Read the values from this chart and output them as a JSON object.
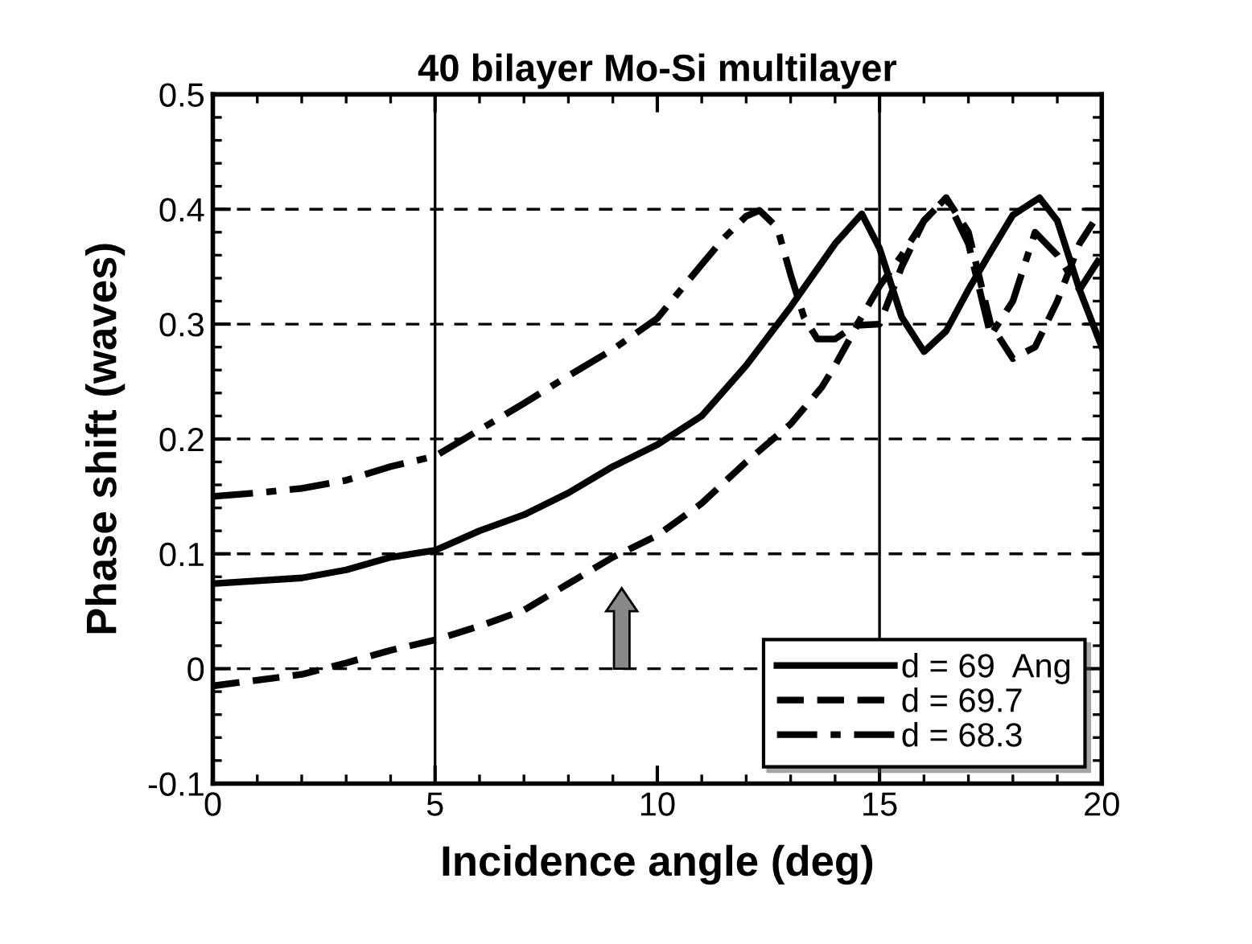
{
  "chart_data": {
    "type": "line",
    "title": "40 bilayer Mo-Si multilayer",
    "xlabel": "Incidence angle (deg)",
    "ylabel": "Phase shift (waves)",
    "xlim": [
      0,
      20
    ],
    "xticks": [
      0,
      5,
      10,
      15,
      20
    ],
    "ylim": [
      -0.1,
      0.5
    ],
    "yticks": [
      -0.1,
      0,
      0.1,
      0.2,
      0.3,
      0.4,
      0.5
    ],
    "grid": "y",
    "legend": "bottom right",
    "ref_lines": [
      {
        "axis": "x",
        "value": 5
      },
      {
        "axis": "x",
        "value": 15
      }
    ],
    "series": [
      {
        "name": "d = 69  Ang",
        "color": "#000000",
        "line_style": "solid",
        "x": [
          0,
          2,
          3,
          4,
          5,
          6,
          7,
          8,
          9,
          10,
          11,
          12,
          13,
          14,
          14.6,
          15,
          15.5,
          16,
          16.5,
          17,
          17.5,
          18,
          18.6,
          19,
          19.5,
          20
        ],
        "values": [
          0.074,
          0.079,
          0.086,
          0.097,
          0.103,
          0.12,
          0.134,
          0.153,
          0.176,
          0.195,
          0.22,
          0.264,
          0.315,
          0.37,
          0.396,
          0.366,
          0.306,
          0.276,
          0.294,
          0.33,
          0.363,
          0.395,
          0.41,
          0.39,
          0.33,
          0.28
        ]
      },
      {
        "name": "d = 69.7",
        "color": "#000000",
        "line_style": "dashed",
        "x": [
          0,
          2,
          3,
          4,
          5,
          6,
          7,
          8,
          9,
          10,
          11,
          12,
          13,
          13.7,
          14,
          14.5,
          15,
          15.5,
          16,
          16.5,
          17,
          17.5,
          18,
          18.5,
          19,
          19.5,
          20
        ],
        "values": [
          -0.015,
          -0.005,
          0.005,
          0.016,
          0.025,
          0.037,
          0.051,
          0.074,
          0.097,
          0.116,
          0.144,
          0.18,
          0.213,
          0.245,
          0.264,
          0.299,
          0.3,
          0.35,
          0.39,
          0.41,
          0.38,
          0.3,
          0.27,
          0.28,
          0.32,
          0.37,
          0.4
        ]
      },
      {
        "name": "d = 68.3",
        "color": "#000000",
        "line_style": "dashdot",
        "x": [
          0,
          1,
          2,
          3,
          4,
          5,
          6,
          7,
          8,
          9,
          10,
          11,
          11.5,
          12,
          12.3,
          12.7,
          13,
          13.3,
          13.6,
          14,
          14.5,
          15,
          15.5,
          16,
          16.5,
          17,
          17.5,
          18,
          18.5,
          19,
          19.5,
          20
        ],
        "values": [
          0.15,
          0.153,
          0.157,
          0.164,
          0.176,
          0.185,
          0.208,
          0.231,
          0.255,
          0.278,
          0.305,
          0.352,
          0.375,
          0.394,
          0.399,
          0.384,
          0.343,
          0.306,
          0.287,
          0.287,
          0.3,
          0.333,
          0.36,
          0.39,
          0.41,
          0.37,
          0.29,
          0.32,
          0.38,
          0.36,
          0.33,
          0.36
        ]
      }
    ]
  }
}
